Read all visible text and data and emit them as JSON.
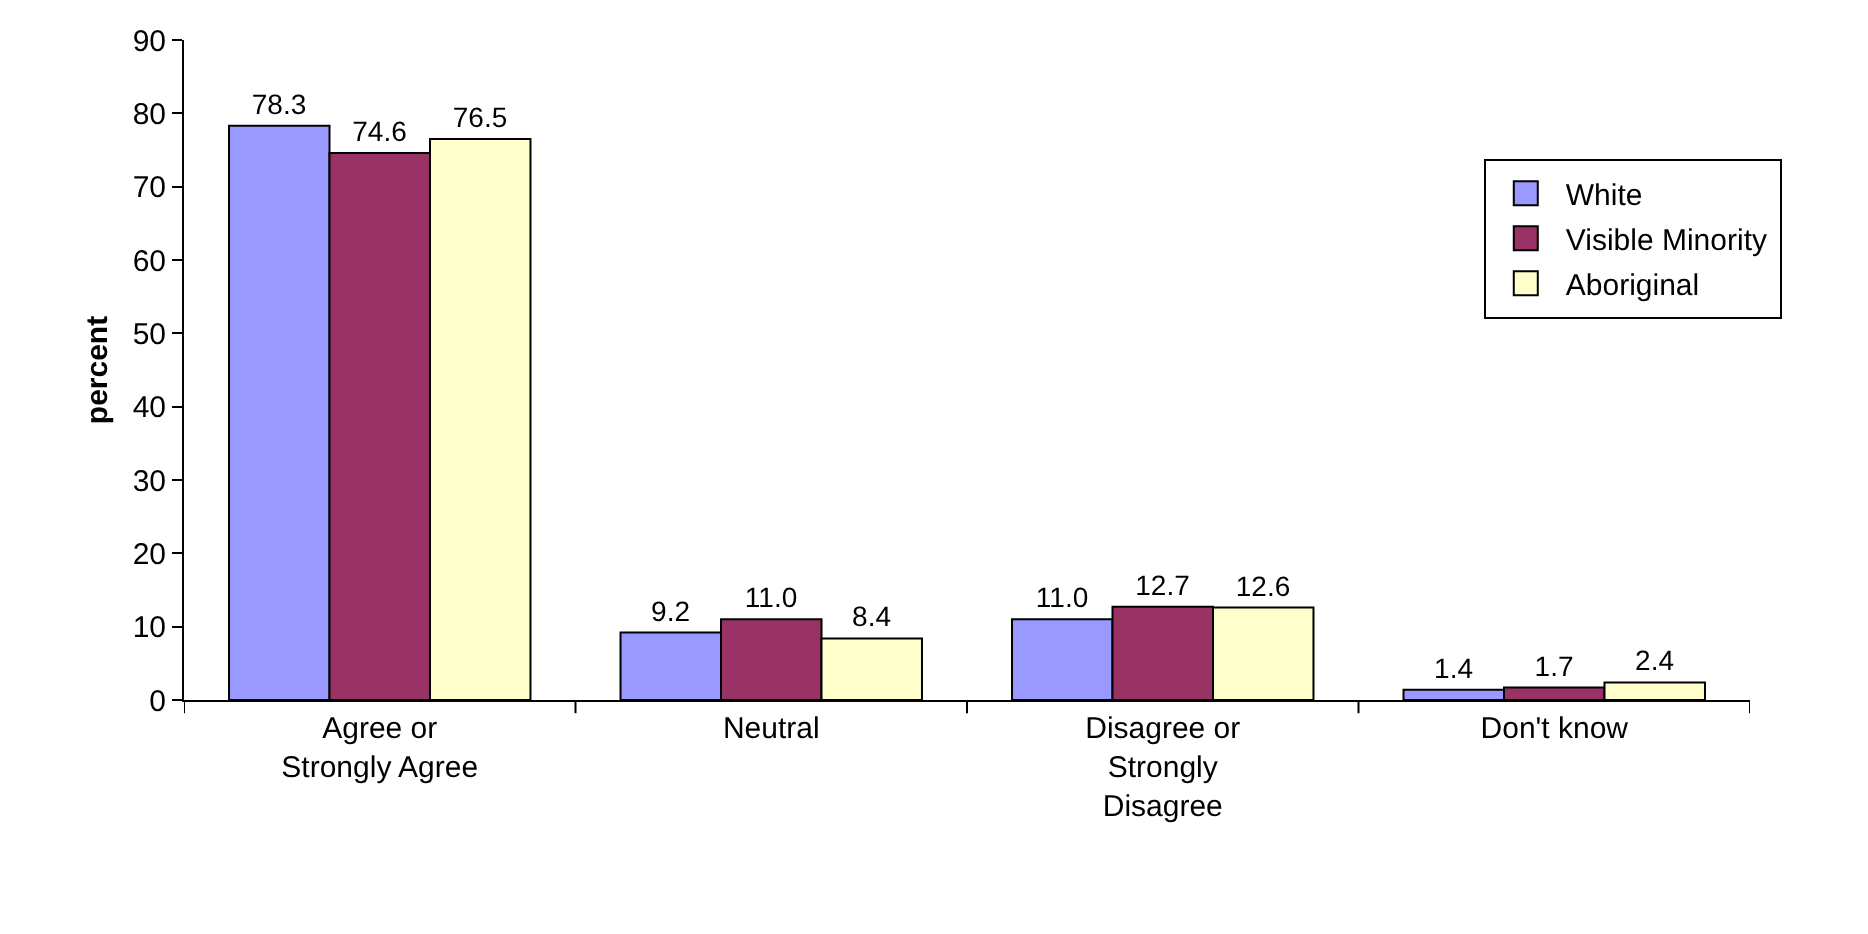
{
  "chart_data": {
    "type": "bar",
    "ylabel": "percent",
    "categories": [
      "Agree or\nStrongly Agree",
      "Neutral",
      "Disagree or\nStrongly\nDisagree",
      "Don't know"
    ],
    "series": [
      {
        "name": "White",
        "color": "#9999ff",
        "values": [
          78.3,
          9.2,
          11.0,
          1.4
        ],
        "value_labels": [
          "78.3",
          "9.2",
          "11.0",
          "1.4"
        ]
      },
      {
        "name": "Visible Minority",
        "color": "#993366",
        "values": [
          74.6,
          11.0,
          12.7,
          1.7
        ],
        "value_labels": [
          "74.6",
          "11.0",
          "12.7",
          "1.7"
        ]
      },
      {
        "name": "Aboriginal",
        "color": "#ffffcc",
        "values": [
          76.5,
          8.4,
          12.6,
          2.4
        ],
        "value_labels": [
          "76.5",
          "8.4",
          "12.6",
          "2.4"
        ]
      }
    ],
    "ylim": [
      0,
      90
    ],
    "yticks": [
      0,
      10,
      20,
      30,
      40,
      50,
      60,
      70,
      80,
      90
    ],
    "legend": "right"
  }
}
